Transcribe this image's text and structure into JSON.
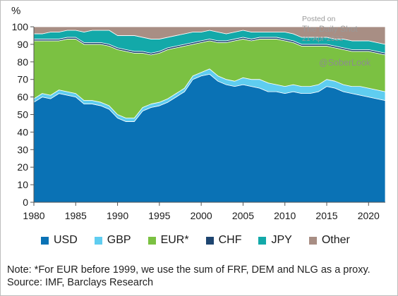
{
  "chart_data": {
    "type": "area",
    "stacked": true,
    "ylabel": "%",
    "ylim": [
      0,
      100
    ],
    "yticks": [
      0,
      10,
      20,
      30,
      40,
      50,
      60,
      70,
      80,
      90,
      100
    ],
    "xlim": [
      1980,
      2022
    ],
    "xticks": [
      1980,
      1985,
      1990,
      1995,
      2000,
      2005,
      2010,
      2015,
      2020
    ],
    "grid": false,
    "legend_position": "bottom",
    "x": [
      1980,
      1981,
      1982,
      1983,
      1984,
      1985,
      1986,
      1987,
      1988,
      1989,
      1990,
      1991,
      1992,
      1993,
      1994,
      1995,
      1996,
      1997,
      1998,
      1999,
      2000,
      2001,
      2002,
      2003,
      2004,
      2005,
      2006,
      2007,
      2008,
      2009,
      2010,
      2011,
      2012,
      2013,
      2014,
      2015,
      2016,
      2017,
      2018,
      2019,
      2020,
      2021,
      2022
    ],
    "series": [
      {
        "name": "USD",
        "color": "#0a72b5",
        "values": [
          57,
          60,
          59,
          62,
          61,
          60,
          56,
          56,
          55,
          53,
          48,
          46,
          46,
          52,
          54,
          55,
          57,
          60,
          63,
          70,
          72,
          73,
          69,
          67,
          66,
          67,
          66,
          65,
          63,
          63,
          62,
          63,
          62,
          62,
          63,
          66,
          65,
          63,
          62,
          61,
          60,
          59,
          58
        ]
      },
      {
        "name": "GBP",
        "color": "#5fcdf0",
        "values": [
          2,
          2,
          2,
          2,
          2,
          2,
          2,
          2,
          2,
          2,
          2,
          2,
          2,
          2,
          2,
          2,
          2,
          2,
          2,
          2,
          2,
          3,
          3,
          3,
          3,
          4,
          4,
          5,
          5,
          4,
          4,
          4,
          4,
          4,
          4,
          4,
          4,
          4,
          4,
          5,
          5,
          5,
          5
        ]
      },
      {
        "name": "EUR*",
        "color": "#7bc142",
        "values": [
          33,
          30,
          31,
          28,
          30,
          31,
          32,
          32,
          33,
          34,
          37,
          38,
          37,
          31,
          28,
          28,
          28,
          26,
          24,
          18,
          17,
          16,
          19,
          21,
          23,
          22,
          22,
          23,
          25,
          26,
          26,
          24,
          23,
          23,
          22,
          19,
          19,
          20,
          20,
          20,
          21,
          21,
          21
        ]
      },
      {
        "name": "CHF",
        "color": "#1e4570",
        "values": [
          1,
          1,
          1,
          1,
          1,
          1,
          1,
          1,
          1,
          1,
          1,
          1,
          1,
          1,
          1,
          1,
          1,
          1,
          1,
          1,
          1,
          1,
          1,
          1,
          1,
          1,
          1,
          1,
          1,
          1,
          1,
          1,
          1,
          1,
          1,
          1,
          1,
          1,
          1,
          1,
          1,
          1,
          1
        ]
      },
      {
        "name": "JPY",
        "color": "#13a9a9",
        "values": [
          3,
          3,
          4,
          4,
          4,
          4,
          6,
          7,
          7,
          8,
          7,
          8,
          9,
          8,
          8,
          7,
          6,
          6,
          6,
          6,
          5,
          5,
          5,
          4,
          4,
          4,
          4,
          3,
          3,
          3,
          4,
          4,
          4,
          4,
          4,
          4,
          4,
          5,
          5,
          5,
          5,
          5,
          5
        ]
      },
      {
        "name": "Other",
        "color": "#a88e84",
        "values": [
          4,
          4,
          3,
          3,
          2,
          2,
          3,
          2,
          2,
          2,
          5,
          5,
          5,
          6,
          7,
          7,
          6,
          5,
          4,
          3,
          3,
          2,
          3,
          4,
          3,
          2,
          3,
          3,
          3,
          3,
          3,
          4,
          6,
          6,
          6,
          6,
          7,
          7,
          8,
          8,
          8,
          9,
          10
        ]
      }
    ]
  },
  "notes": {
    "line1": "Note: *For EUR before 1999, we use the sum of FRF, DEM and NLG as a proxy.",
    "line2": "Source: IMF, Barclays Research"
  },
  "watermark": {
    "posted": "Posted on",
    "name": "The Daily Shot",
    "date": "21-Apr-2022",
    "handle": "@SoberLook"
  }
}
